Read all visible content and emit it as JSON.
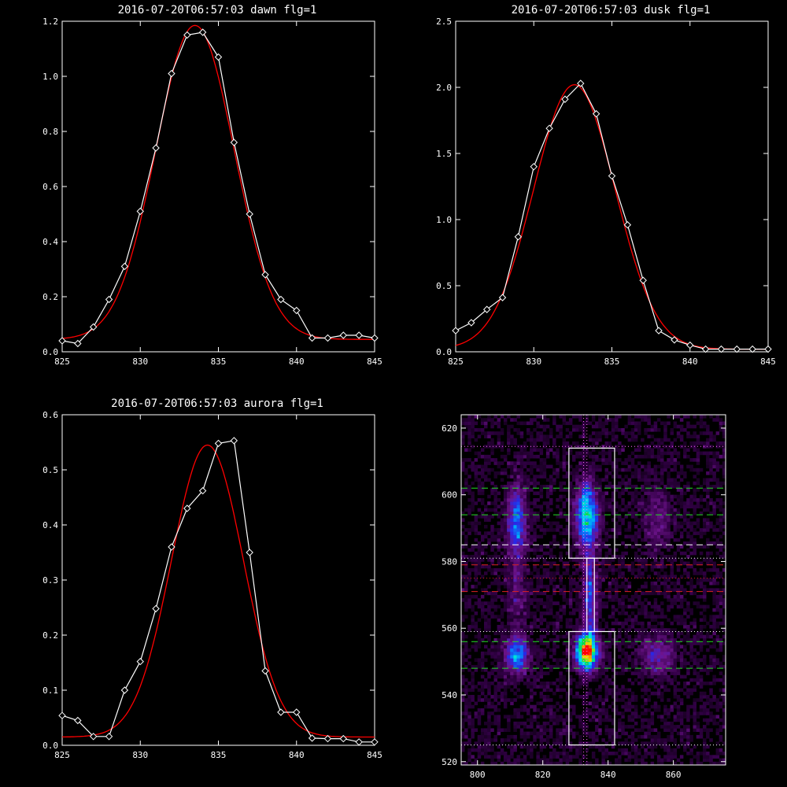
{
  "chart_data": [
    {
      "type": "line",
      "title": "2016-07-20T06:57:03 dawn flg=1",
      "xlim": [
        825,
        845
      ],
      "ylim": [
        0,
        1.2
      ],
      "xticks": [
        825,
        830,
        835,
        840,
        845
      ],
      "yticks": [
        0.0,
        0.2,
        0.4,
        0.6,
        0.8,
        1.0,
        1.2
      ],
      "ytick_labels": [
        "0.0",
        "0.2",
        "0.4",
        "0.6",
        "0.8",
        "1.0",
        "1.2"
      ],
      "series": [
        {
          "color": "#ffffff",
          "marker": "diamond",
          "x": [
            825,
            826,
            827,
            828,
            829,
            830,
            831,
            832,
            833,
            834,
            835,
            836,
            837,
            838,
            839,
            840,
            841,
            842,
            843,
            844,
            845
          ],
          "y": [
            0.04,
            0.03,
            0.09,
            0.19,
            0.31,
            0.51,
            0.74,
            1.01,
            1.15,
            1.16,
            1.07,
            0.76,
            0.5,
            0.28,
            0.19,
            0.15,
            0.05,
            0.05,
            0.06,
            0.06,
            0.05
          ]
        },
        {
          "color": "#ff0000",
          "fit": {
            "amp": 1.14,
            "center": 833.5,
            "sigma": 2.5,
            "base": 0.045
          }
        }
      ]
    },
    {
      "type": "line",
      "title": "2016-07-20T06:57:03 dusk flg=1",
      "xlim": [
        825,
        845
      ],
      "ylim": [
        0,
        2.5
      ],
      "xticks": [
        825,
        830,
        835,
        840,
        845
      ],
      "yticks": [
        0.0,
        0.5,
        1.0,
        1.5,
        2.0,
        2.5
      ],
      "ytick_labels": [
        "0.0",
        "0.5",
        "1.0",
        "1.5",
        "2.0",
        "2.5"
      ],
      "series": [
        {
          "color": "#ffffff",
          "marker": "diamond",
          "x": [
            825,
            826,
            827,
            828,
            829,
            830,
            831,
            832,
            833,
            834,
            835,
            836,
            837,
            838,
            839,
            840,
            841,
            842,
            843,
            844,
            845
          ],
          "y": [
            0.16,
            0.22,
            0.32,
            0.41,
            0.87,
            1.4,
            1.69,
            1.91,
            2.03,
            1.8,
            1.33,
            0.96,
            0.54,
            0.16,
            0.09,
            0.05,
            0.02,
            0.02,
            0.02,
            0.02,
            0.02
          ]
        },
        {
          "color": "#ff0000",
          "fit": {
            "amp": 2.0,
            "center": 832.6,
            "sigma": 2.6,
            "base": 0.02
          }
        }
      ]
    },
    {
      "type": "line",
      "title": "2016-07-20T06:57:03 aurora flg=1",
      "xlim": [
        825,
        845
      ],
      "ylim": [
        0,
        0.6
      ],
      "xticks": [
        825,
        830,
        835,
        840,
        845
      ],
      "yticks": [
        0.0,
        0.1,
        0.2,
        0.3,
        0.4,
        0.5,
        0.6
      ],
      "ytick_labels": [
        "0.0",
        "0.1",
        "0.2",
        "0.3",
        "0.4",
        "0.5",
        "0.6"
      ],
      "series": [
        {
          "color": "#ffffff",
          "marker": "diamond",
          "x": [
            825,
            826,
            827,
            828,
            829,
            830,
            831,
            832,
            833,
            834,
            835,
            836,
            837,
            838,
            839,
            840,
            841,
            842,
            843,
            844,
            845
          ],
          "y": [
            0.054,
            0.045,
            0.016,
            0.016,
            0.1,
            0.152,
            0.248,
            0.36,
            0.43,
            0.462,
            0.548,
            0.553,
            0.35,
            0.135,
            0.06,
            0.06,
            0.013,
            0.012,
            0.012,
            0.006,
            0.006
          ]
        },
        {
          "color": "#ff0000",
          "fit": {
            "amp": 0.53,
            "center": 834.3,
            "sigma": 2.3,
            "base": 0.015
          }
        }
      ]
    },
    {
      "type": "heatmap",
      "xlim": [
        795,
        876
      ],
      "ylim": [
        519,
        624
      ],
      "xticks": [
        800,
        820,
        840,
        860
      ],
      "yticks": [
        520,
        540,
        560,
        580,
        600,
        620
      ],
      "blobs": [
        {
          "x": 833.5,
          "y": 553,
          "sx": 2.2,
          "sy": 3.5,
          "amp": 1.0
        },
        {
          "x": 833.5,
          "y": 594,
          "sx": 2.2,
          "sy": 6.5,
          "amp": 0.6
        },
        {
          "x": 834.5,
          "y": 570,
          "sx": 1.6,
          "sy": 9.0,
          "amp": 0.32
        },
        {
          "x": 812,
          "y": 552,
          "sx": 2.5,
          "sy": 3.5,
          "amp": 0.45
        },
        {
          "x": 812,
          "y": 592,
          "sx": 2.0,
          "sy": 7.5,
          "amp": 0.38
        },
        {
          "x": 855,
          "y": 552,
          "sx": 3.5,
          "sy": 4.0,
          "amp": 0.25
        },
        {
          "x": 855,
          "y": 593,
          "sx": 3.0,
          "sy": 7.0,
          "amp": 0.15
        },
        {
          "x": 812,
          "y": 570,
          "sx": 2.0,
          "sy": 8.0,
          "amp": 0.14
        }
      ],
      "boxes": [
        {
          "x0": 828,
          "x1": 842,
          "y0": 581,
          "y1": 614,
          "color": "#ffffff"
        },
        {
          "x0": 828,
          "x1": 842,
          "y0": 525,
          "y1": 559,
          "color": "#ffffff"
        },
        {
          "x0": 833.5,
          "x1": 835.8,
          "y0": 559,
          "y1": 581,
          "color": "#ffffff"
        }
      ],
      "hlines": [
        {
          "y": 614.5,
          "color": "#ff66ff",
          "style": "dotted"
        },
        {
          "y": 602,
          "color": "#22dd22",
          "style": "dashed"
        },
        {
          "y": 594,
          "color": "#22dd22",
          "style": "dashed"
        },
        {
          "y": 585,
          "color": "#ffffff",
          "style": "dashed"
        },
        {
          "y": 581,
          "color": "#ffffff",
          "style": "dotted"
        },
        {
          "y": 579,
          "color": "#dd2222",
          "style": "dashed"
        },
        {
          "y": 575,
          "color": "#dd2222",
          "style": "dotted"
        },
        {
          "y": 571,
          "color": "#dd2222",
          "style": "dashed"
        },
        {
          "y": 559,
          "color": "#ffffff",
          "style": "dotted"
        },
        {
          "y": 556,
          "color": "#22dd22",
          "style": "dashed"
        },
        {
          "y": 548,
          "color": "#22dd22",
          "style": "dashed"
        },
        {
          "y": 525,
          "color": "#ffffff",
          "style": "dotted"
        }
      ],
      "vlines": [
        {
          "x": 832.5,
          "color": "#ff66ff",
          "style": "dotted"
        },
        {
          "x": 833.5,
          "color": "#ff66ff",
          "style": "dotted"
        }
      ]
    }
  ]
}
